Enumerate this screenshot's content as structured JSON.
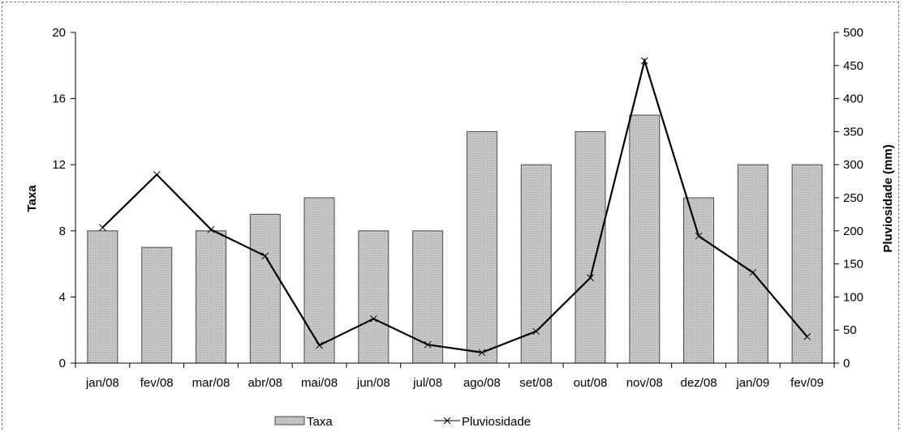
{
  "chart_data": {
    "type": "bar",
    "categories": [
      "jan/08",
      "fev/08",
      "mar/08",
      "abr/08",
      "mai/08",
      "jun/08",
      "jul/08",
      "ago/08",
      "set/08",
      "out/08",
      "nov/08",
      "dez/08",
      "jan/09",
      "fev/09"
    ],
    "series": [
      {
        "name": "Taxa",
        "type": "bar",
        "axis": "left",
        "values": [
          8,
          7,
          8,
          9,
          10,
          8,
          8,
          14,
          12,
          14,
          15,
          10,
          12,
          12
        ]
      },
      {
        "name": "Pluviosidade",
        "type": "line",
        "axis": "right",
        "values": [
          205,
          285,
          202,
          162,
          27,
          67,
          28,
          16,
          48,
          129,
          457,
          192,
          137,
          40
        ]
      }
    ],
    "ylabel": "Taxa",
    "ylabel_right": "Pluviosidade (mm)",
    "ylim": [
      0,
      20
    ],
    "yticks": [
      0,
      4,
      8,
      12,
      16,
      20
    ],
    "ylim_right": [
      0,
      500
    ],
    "yticks_right": [
      0,
      50,
      100,
      150,
      200,
      250,
      300,
      350,
      400,
      450,
      500
    ],
    "grid": false,
    "legend_position": "bottom",
    "colors": {
      "bar_fill": "#c8c8c8",
      "bar_stroke": "#4a4a4a",
      "line": "#000000"
    }
  }
}
